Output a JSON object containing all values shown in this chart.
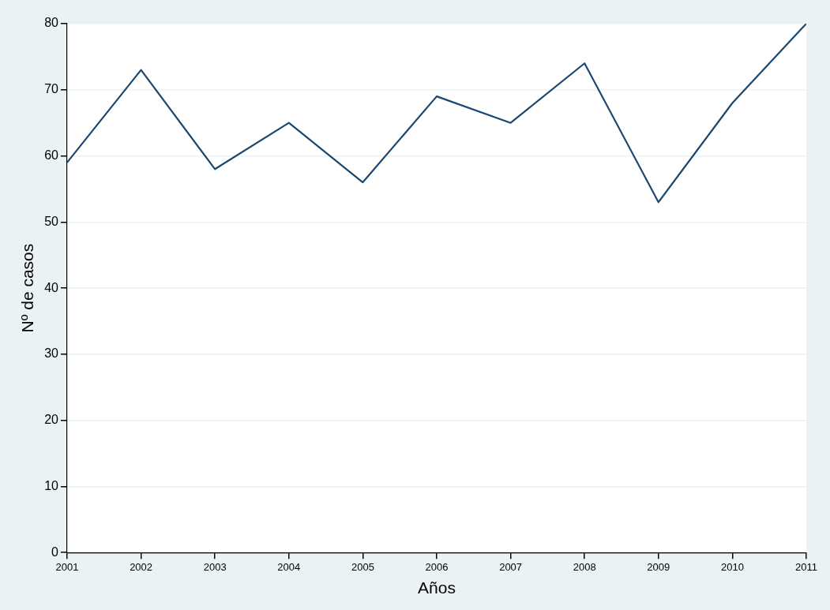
{
  "chart_data": {
    "type": "line",
    "xlabel": "Años",
    "ylabel": "Nº de casos",
    "x": [
      2001,
      2002,
      2003,
      2004,
      2005,
      2006,
      2007,
      2008,
      2009,
      2010,
      2011
    ],
    "series": [
      {
        "color": "#1a476f",
        "values": [
          59,
          73,
          58,
          65,
          56,
          69,
          65,
          74,
          53,
          68,
          80
        ]
      }
    ],
    "xlim": [
      2001,
      2011
    ],
    "xticks": [
      2001,
      2002,
      2003,
      2004,
      2005,
      2006,
      2007,
      2008,
      2009,
      2010,
      2011
    ],
    "ylim": [
      0,
      80
    ],
    "yticks": [
      0,
      10,
      20,
      30,
      40,
      50,
      60,
      70,
      80
    ],
    "grid": "y",
    "legend": false,
    "marker": "none",
    "line_style": "solid"
  }
}
